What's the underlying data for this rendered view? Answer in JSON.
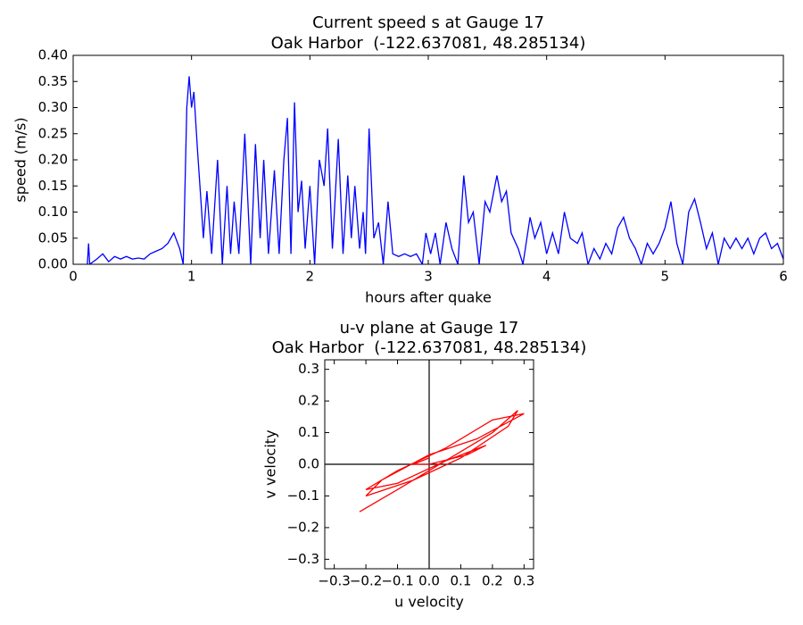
{
  "chart_data": [
    {
      "type": "line",
      "title": "Current speed s at Gauge 17",
      "subtitle": "Oak Harbor  (-122.637081, 48.285134)",
      "xlabel": "hours after quake",
      "ylabel": "speed (m/s)",
      "xlim": [
        0,
        6
      ],
      "xticks": [
        0,
        1,
        2,
        3,
        4,
        5,
        6
      ],
      "ylim": [
        0,
        0.4
      ],
      "yticks": [
        {
          "value": 0,
          "label": "0.00"
        },
        {
          "value": 0.05,
          "label": "0.05"
        },
        {
          "value": 0.1,
          "label": "0.10"
        },
        {
          "value": 0.15,
          "label": "0.15"
        },
        {
          "value": 0.2,
          "label": "0.20"
        },
        {
          "value": 0.25,
          "label": "0.25"
        },
        {
          "value": 0.3,
          "label": "0.30"
        },
        {
          "value": 0.35,
          "label": "0.35"
        },
        {
          "value": 0.4,
          "label": "0.40"
        }
      ],
      "x": [
        0.12,
        0.13,
        0.14,
        0.2,
        0.25,
        0.3,
        0.35,
        0.4,
        0.45,
        0.5,
        0.55,
        0.6,
        0.65,
        0.7,
        0.75,
        0.8,
        0.85,
        0.9,
        0.93,
        0.96,
        0.98,
        1.0,
        1.02,
        1.05,
        1.08,
        1.1,
        1.13,
        1.17,
        1.22,
        1.26,
        1.3,
        1.33,
        1.36,
        1.4,
        1.45,
        1.5,
        1.54,
        1.58,
        1.61,
        1.65,
        1.7,
        1.74,
        1.78,
        1.81,
        1.84,
        1.87,
        1.9,
        1.93,
        1.96,
        2.0,
        2.04,
        2.08,
        2.12,
        2.15,
        2.19,
        2.24,
        2.28,
        2.32,
        2.35,
        2.38,
        2.42,
        2.45,
        2.47,
        2.5,
        2.54,
        2.58,
        2.62,
        2.66,
        2.7,
        2.75,
        2.8,
        2.85,
        2.9,
        2.95,
        2.98,
        3.02,
        3.06,
        3.1,
        3.15,
        3.2,
        3.25,
        3.3,
        3.34,
        3.38,
        3.43,
        3.48,
        3.52,
        3.58,
        3.62,
        3.66,
        3.7,
        3.76,
        3.8,
        3.86,
        3.9,
        3.95,
        4.0,
        4.05,
        4.1,
        4.15,
        4.2,
        4.26,
        4.3,
        4.35,
        4.4,
        4.45,
        4.5,
        4.55,
        4.6,
        4.65,
        4.7,
        4.75,
        4.8,
        4.85,
        4.9,
        4.95,
        5.0,
        5.05,
        5.1,
        5.15,
        5.2,
        5.25,
        5.3,
        5.35,
        5.4,
        5.45,
        5.5,
        5.55,
        5.6,
        5.65,
        5.7,
        5.75,
        5.8,
        5.85,
        5.9,
        5.95,
        6.0
      ],
      "series": [
        {
          "color": "#0000ff",
          "values": [
            0.0,
            0.04,
            0.0,
            0.01,
            0.02,
            0.005,
            0.015,
            0.01,
            0.015,
            0.01,
            0.012,
            0.01,
            0.02,
            0.025,
            0.03,
            0.04,
            0.06,
            0.03,
            0.0,
            0.3,
            0.36,
            0.3,
            0.33,
            0.22,
            0.12,
            0.05,
            0.14,
            0.02,
            0.2,
            0.0,
            0.15,
            0.02,
            0.12,
            0.02,
            0.25,
            0.0,
            0.23,
            0.05,
            0.2,
            0.02,
            0.18,
            0.02,
            0.2,
            0.28,
            0.02,
            0.31,
            0.1,
            0.16,
            0.03,
            0.15,
            0.0,
            0.2,
            0.15,
            0.26,
            0.03,
            0.24,
            0.02,
            0.17,
            0.05,
            0.15,
            0.03,
            0.1,
            0.02,
            0.26,
            0.05,
            0.08,
            0.0,
            0.12,
            0.02,
            0.015,
            0.02,
            0.015,
            0.02,
            0.0,
            0.06,
            0.02,
            0.06,
            0.0,
            0.08,
            0.03,
            0.0,
            0.17,
            0.08,
            0.1,
            0.0,
            0.12,
            0.1,
            0.17,
            0.12,
            0.14,
            0.06,
            0.03,
            0.0,
            0.09,
            0.05,
            0.08,
            0.02,
            0.06,
            0.02,
            0.1,
            0.05,
            0.04,
            0.06,
            0.0,
            0.03,
            0.01,
            0.04,
            0.02,
            0.07,
            0.09,
            0.05,
            0.03,
            0.0,
            0.04,
            0.02,
            0.04,
            0.07,
            0.12,
            0.04,
            0.0,
            0.1,
            0.125,
            0.08,
            0.03,
            0.06,
            0.0,
            0.05,
            0.03,
            0.05,
            0.03,
            0.05,
            0.02,
            0.05,
            0.06,
            0.03,
            0.04,
            0.01
          ]
        }
      ]
    },
    {
      "type": "line",
      "title": "u-v plane at Gauge 17",
      "subtitle": "Oak Harbor  (-122.637081, 48.285134)",
      "xlabel": "u velocity",
      "ylabel": "v velocity",
      "xlim": [
        -0.33,
        0.33
      ],
      "ylim": [
        -0.33,
        0.33
      ],
      "xticks": [
        {
          "value": -0.3,
          "label": "−0.3"
        },
        {
          "value": -0.2,
          "label": "−0.2"
        },
        {
          "value": -0.1,
          "label": "−0.1"
        },
        {
          "value": 0,
          "label": "0.0"
        },
        0.1,
        0.2,
        0.3
      ],
      "yticks": [
        {
          "value": -0.3,
          "label": "−0.3"
        },
        {
          "value": -0.2,
          "label": "−0.2"
        },
        {
          "value": -0.1,
          "label": "−0.1"
        },
        {
          "value": 0,
          "label": "0.0"
        },
        0.1,
        0.2,
        0.3
      ],
      "hlines": [
        0
      ],
      "vlines": [
        0
      ],
      "x": [
        -0.22,
        -0.1,
        0,
        0.1,
        0.2,
        0.28,
        0.25,
        0.1,
        -0.05,
        -0.2,
        -0.15,
        0,
        0.15,
        0.3,
        0.2,
        0.05,
        -0.1,
        -0.2,
        -0.1,
        0.05,
        0.18,
        0.12,
        0,
        -0.05,
        0
      ],
      "series": [
        {
          "color": "#ff0000",
          "values": [
            -0.15,
            -0.08,
            -0.02,
            0.04,
            0.1,
            0.17,
            0.12,
            0.02,
            -0.05,
            -0.1,
            -0.05,
            0.03,
            0.08,
            0.16,
            0.14,
            0.05,
            -0.02,
            -0.08,
            -0.06,
            0.01,
            0.06,
            0.03,
            0,
            0.0,
            0.02
          ]
        }
      ]
    }
  ]
}
